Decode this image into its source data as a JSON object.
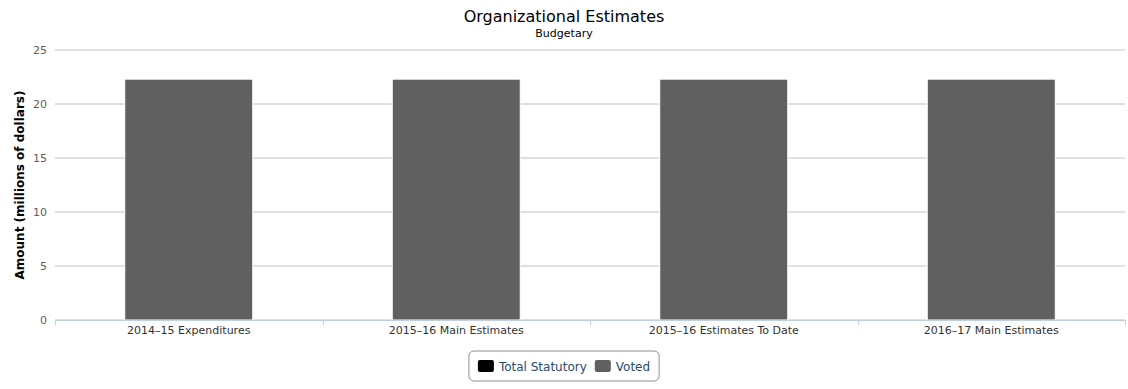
{
  "chart_data": {
    "type": "bar",
    "title": "Organizational Estimates",
    "subtitle": "Budgetary",
    "y_label": "Amount (millions of dollars)",
    "categories": [
      "2014–15 Expenditures",
      "2015–16 Main Estimates",
      "2015–16 Estimates To Date",
      "2016–17 Main Estimates"
    ],
    "series": [
      {
        "name": "Total Statutory",
        "color": "#000000",
        "values": [
          0,
          0,
          0,
          0
        ]
      },
      {
        "name": "Voted",
        "color": "#606060",
        "values": [
          22.3,
          22.3,
          22.3,
          22.3
        ]
      }
    ],
    "stacked": true,
    "ylim": [
      0,
      25
    ],
    "yticks": [
      0,
      5,
      10,
      15,
      20,
      25
    ],
    "grid": true,
    "legend": "bottom"
  }
}
